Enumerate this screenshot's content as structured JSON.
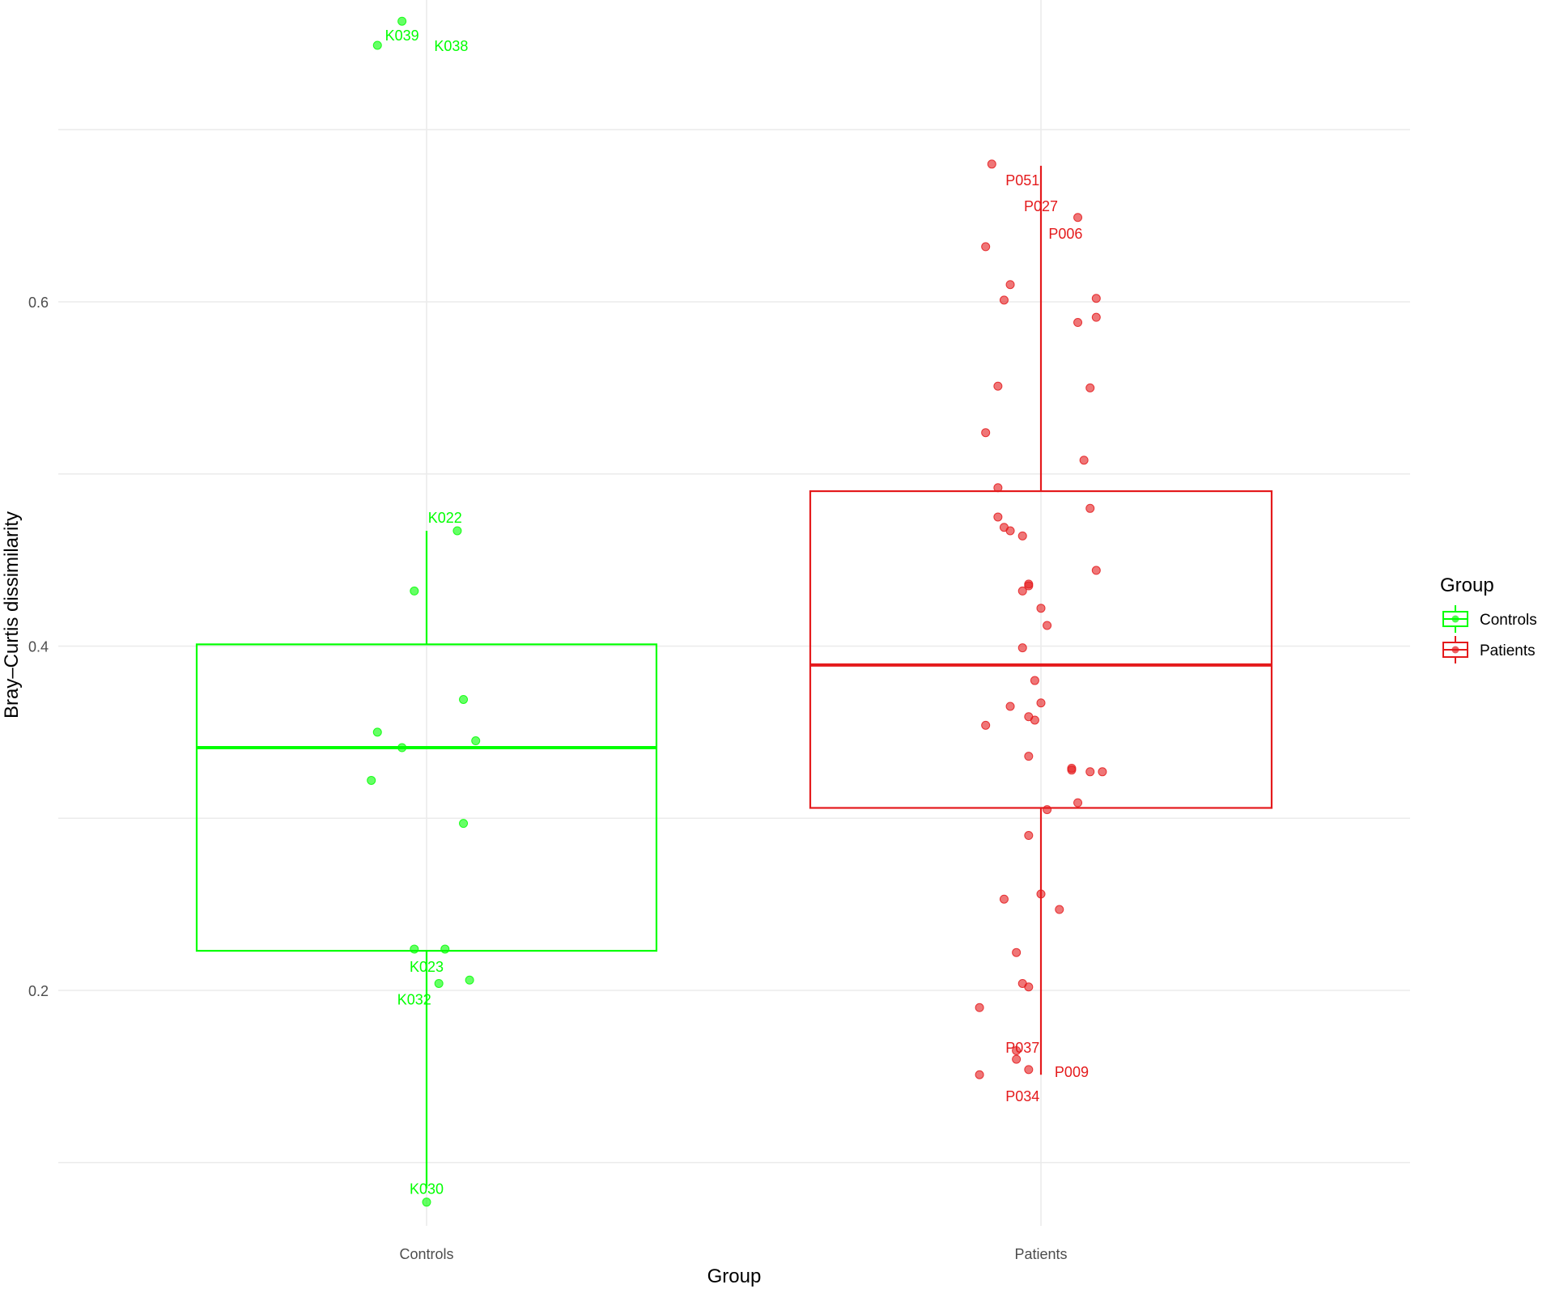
{
  "colors": {
    "controls": "#00ff00",
    "patients": "#e41a1c",
    "grid": "#ebebeb",
    "axis_text": "#4d4d4d"
  },
  "chart_data": {
    "type": "boxplot",
    "xlabel": "Group",
    "ylabel": "Bray–Curtis dissimilarity",
    "categories": [
      "Controls",
      "Patients"
    ],
    "ylim": [
      0.05,
      0.78
    ],
    "yticks": [
      0.2,
      0.4,
      0.6
    ],
    "grid": true,
    "legend": {
      "title": "Group",
      "position": "right",
      "entries": [
        "Controls",
        "Patients"
      ]
    },
    "boxes": [
      {
        "group": "Controls",
        "whisker_low": 0.085,
        "q1": 0.223,
        "median": 0.341,
        "q3": 0.401,
        "whisker_high": 0.467
      },
      {
        "group": "Patients",
        "whisker_low": 0.151,
        "q1": 0.306,
        "median": 0.389,
        "q3": 0.49,
        "whisker_high": 0.679
      }
    ],
    "series": [
      {
        "name": "Controls",
        "points": [
          {
            "x": -0.08,
            "y": 0.749
          },
          {
            "x": -0.04,
            "y": 0.763
          },
          {
            "x": 0.05,
            "y": 0.467
          },
          {
            "x": -0.02,
            "y": 0.432
          },
          {
            "x": 0.06,
            "y": 0.369
          },
          {
            "x": -0.08,
            "y": 0.35
          },
          {
            "x": 0.08,
            "y": 0.345
          },
          {
            "x": -0.04,
            "y": 0.341
          },
          {
            "x": -0.09,
            "y": 0.322
          },
          {
            "x": 0.06,
            "y": 0.297
          },
          {
            "x": -0.02,
            "y": 0.224
          },
          {
            "x": 0.03,
            "y": 0.224
          },
          {
            "x": 0.07,
            "y": 0.206
          },
          {
            "x": 0.02,
            "y": 0.204
          },
          {
            "x": 0.0,
            "y": 0.077
          }
        ]
      },
      {
        "name": "Patients",
        "points": [
          {
            "x": -0.08,
            "y": 0.68
          },
          {
            "x": 0.06,
            "y": 0.649
          },
          {
            "x": -0.09,
            "y": 0.632
          },
          {
            "x": -0.05,
            "y": 0.61
          },
          {
            "x": -0.06,
            "y": 0.601
          },
          {
            "x": 0.09,
            "y": 0.602
          },
          {
            "x": 0.09,
            "y": 0.591
          },
          {
            "x": 0.06,
            "y": 0.588
          },
          {
            "x": -0.07,
            "y": 0.551
          },
          {
            "x": 0.08,
            "y": 0.55
          },
          {
            "x": -0.09,
            "y": 0.524
          },
          {
            "x": 0.07,
            "y": 0.508
          },
          {
            "x": -0.07,
            "y": 0.492
          },
          {
            "x": 0.08,
            "y": 0.48
          },
          {
            "x": -0.07,
            "y": 0.475
          },
          {
            "x": -0.06,
            "y": 0.469
          },
          {
            "x": -0.05,
            "y": 0.467
          },
          {
            "x": -0.03,
            "y": 0.464
          },
          {
            "x": 0.09,
            "y": 0.444
          },
          {
            "x": -0.02,
            "y": 0.436
          },
          {
            "x": -0.02,
            "y": 0.435
          },
          {
            "x": -0.03,
            "y": 0.432
          },
          {
            "x": 0.0,
            "y": 0.422
          },
          {
            "x": 0.01,
            "y": 0.412
          },
          {
            "x": -0.03,
            "y": 0.399
          },
          {
            "x": -0.01,
            "y": 0.38
          },
          {
            "x": 0.0,
            "y": 0.367
          },
          {
            "x": -0.05,
            "y": 0.365
          },
          {
            "x": -0.02,
            "y": 0.359
          },
          {
            "x": -0.01,
            "y": 0.357
          },
          {
            "x": -0.09,
            "y": 0.354
          },
          {
            "x": -0.02,
            "y": 0.336
          },
          {
            "x": 0.05,
            "y": 0.329
          },
          {
            "x": 0.05,
            "y": 0.328
          },
          {
            "x": 0.08,
            "y": 0.327
          },
          {
            "x": 0.1,
            "y": 0.327
          },
          {
            "x": 0.06,
            "y": 0.309
          },
          {
            "x": 0.01,
            "y": 0.305
          },
          {
            "x": -0.02,
            "y": 0.29
          },
          {
            "x": 0.0,
            "y": 0.256
          },
          {
            "x": -0.06,
            "y": 0.253
          },
          {
            "x": 0.03,
            "y": 0.247
          },
          {
            "x": -0.04,
            "y": 0.222
          },
          {
            "x": -0.03,
            "y": 0.204
          },
          {
            "x": -0.02,
            "y": 0.202
          },
          {
            "x": -0.1,
            "y": 0.19
          },
          {
            "x": -0.04,
            "y": 0.165
          },
          {
            "x": -0.04,
            "y": 0.16
          },
          {
            "x": -0.02,
            "y": 0.154
          },
          {
            "x": -0.1,
            "y": 0.151
          }
        ]
      }
    ],
    "annotations": [
      {
        "group": "Controls",
        "text": "K039",
        "x": -0.04,
        "y": 0.755
      },
      {
        "group": "Controls",
        "text": "K038",
        "x": 0.04,
        "y": 0.749
      },
      {
        "group": "Controls",
        "text": "K022",
        "x": 0.03,
        "y": 0.475
      },
      {
        "group": "Controls",
        "text": "K023",
        "x": 0.0,
        "y": 0.214
      },
      {
        "group": "Controls",
        "text": "K032",
        "x": -0.02,
        "y": 0.195
      },
      {
        "group": "Controls",
        "text": "K030",
        "x": 0.0,
        "y": 0.085
      },
      {
        "group": "Patients",
        "text": "P051",
        "x": -0.03,
        "y": 0.671
      },
      {
        "group": "Patients",
        "text": "P027",
        "x": 0.0,
        "y": 0.656
      },
      {
        "group": "Patients",
        "text": "P006",
        "x": 0.04,
        "y": 0.64
      },
      {
        "group": "Patients",
        "text": "P037",
        "x": -0.03,
        "y": 0.167
      },
      {
        "group": "Patients",
        "text": "P009",
        "x": 0.05,
        "y": 0.153
      },
      {
        "group": "Patients",
        "text": "P034",
        "x": -0.03,
        "y": 0.139
      }
    ]
  }
}
